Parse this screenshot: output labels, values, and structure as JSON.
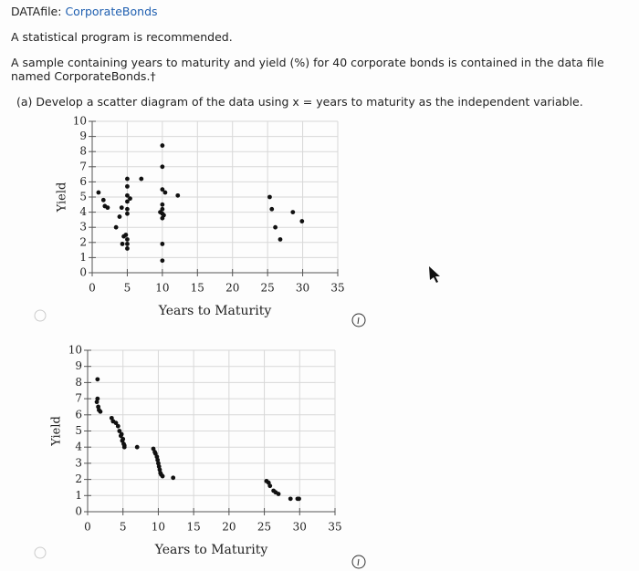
{
  "datafile_label": "DATAfile:",
  "datafile_name": "CorporateBonds",
  "note": "A statistical program is recommended.",
  "description": "A sample containing years to maturity and yield (%) for 40 corporate bonds is contained in the data file named CorporateBonds.†",
  "question": "(a) Develop a scatter diagram of the data using x = years to maturity as the independent variable.",
  "chart_data": [
    {
      "type": "scatter",
      "xlabel": "Years to Maturity",
      "ylabel": "Yield",
      "color": "#111111",
      "grid": true,
      "xlim": [
        0,
        35
      ],
      "ylim": [
        0,
        10
      ],
      "xticks": [
        0,
        5,
        10,
        15,
        20,
        25,
        30,
        35
      ],
      "yticks": [
        0,
        1,
        2,
        3,
        4,
        5,
        6,
        7,
        8,
        9,
        10
      ],
      "x": [
        0.9,
        1.6,
        1.8,
        2.2,
        3.4,
        3.9,
        4.2,
        4.3,
        5.0,
        5.0,
        5.0,
        5.0,
        5.0,
        5.0,
        4.8,
        5.0,
        5.0,
        5.0,
        7.0,
        10.0,
        10.0,
        10.0,
        10.0,
        10.0,
        10.0,
        10.0,
        10.0,
        10.0,
        10.4,
        9.7,
        12.2,
        25.3,
        25.6,
        26.1,
        26.8,
        28.6,
        29.9,
        5.4,
        4.5,
        10.2
      ],
      "y": [
        5.3,
        4.8,
        4.4,
        4.3,
        3.0,
        3.7,
        4.3,
        1.9,
        6.2,
        5.7,
        5.1,
        4.7,
        4.2,
        3.9,
        2.5,
        2.2,
        1.9,
        1.6,
        6.2,
        8.4,
        7.0,
        5.5,
        4.5,
        4.2,
        3.9,
        3.6,
        1.9,
        0.8,
        5.3,
        4.0,
        5.1,
        5.0,
        4.2,
        3.0,
        2.2,
        4.0,
        3.4,
        4.9,
        2.4,
        3.8
      ]
    },
    {
      "type": "scatter",
      "xlabel": "Years to Maturity",
      "ylabel": "Yield",
      "color": "#111111",
      "grid": true,
      "xlim": [
        0,
        35
      ],
      "ylim": [
        0,
        10
      ],
      "xticks": [
        0,
        5,
        10,
        15,
        20,
        25,
        30,
        35
      ],
      "yticks": [
        0,
        1,
        2,
        3,
        4,
        5,
        6,
        7,
        8,
        9,
        10
      ],
      "x": [
        1.4,
        1.4,
        1.3,
        1.5,
        1.8,
        3.4,
        3.6,
        4.3,
        4.5,
        4.7,
        4.9,
        5.1,
        5.2,
        7.0,
        9.3,
        9.6,
        9.8,
        10.0,
        10.2,
        10.4,
        10.6,
        12.1,
        25.3,
        25.8,
        26.3,
        27.0,
        28.7,
        29.7,
        5.0,
        4.0,
        9.5,
        10.1,
        26.6,
        1.6,
        5.2,
        9.9,
        10.3,
        4.8,
        25.6,
        29.9
      ],
      "y": [
        8.2,
        7.0,
        6.8,
        6.5,
        6.2,
        5.8,
        5.6,
        5.3,
        5.0,
        4.7,
        4.4,
        4.2,
        4.0,
        4.0,
        3.9,
        3.6,
        3.4,
        3.0,
        2.6,
        2.3,
        2.2,
        2.1,
        1.9,
        1.6,
        1.3,
        1.1,
        0.8,
        0.8,
        4.5,
        5.5,
        3.7,
        2.8,
        1.2,
        6.3,
        4.1,
        3.2,
        2.4,
        4.8,
        1.8,
        0.8
      ]
    }
  ]
}
